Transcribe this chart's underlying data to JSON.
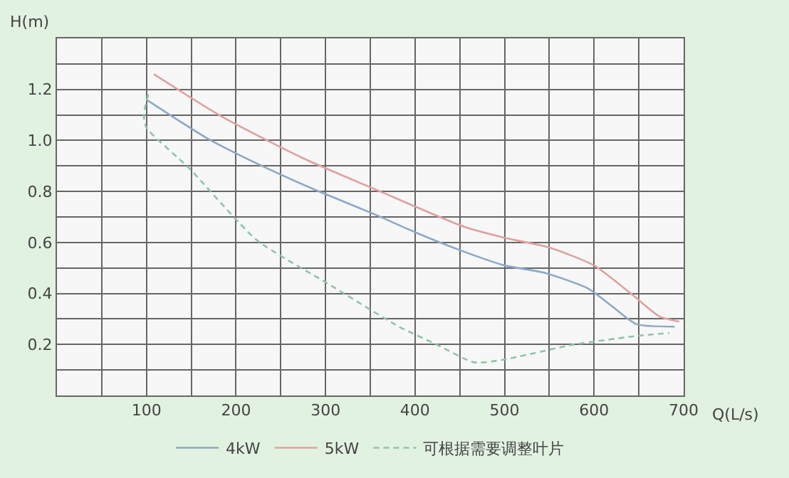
{
  "chart_data": {
    "type": "line",
    "xlabel": "Q(L/s)",
    "ylabel": "H(m)",
    "xlim": [
      0,
      700
    ],
    "ylim": [
      0,
      1.4
    ],
    "xticks": [
      {
        "value": 50,
        "label": null
      },
      100,
      {
        "value": 150,
        "label": null
      },
      200,
      {
        "value": 250,
        "label": null
      },
      300,
      {
        "value": 350,
        "label": null
      },
      400,
      {
        "value": 450,
        "label": null
      },
      500,
      {
        "value": 550,
        "label": null
      },
      600,
      {
        "value": 650,
        "label": null
      },
      700
    ],
    "yticks": [
      {
        "value": 0.1,
        "label": null
      },
      0.2,
      {
        "value": 0.3,
        "label": null
      },
      0.4,
      {
        "value": 0.5,
        "label": null
      },
      0.6,
      {
        "value": 0.7,
        "label": null
      },
      0.8,
      {
        "value": 0.9,
        "label": null
      },
      {
        "value": 1.0,
        "label": "1.0"
      },
      {
        "value": 1.1,
        "label": null
      },
      1.2,
      {
        "value": 1.3,
        "label": null
      }
    ],
    "grid": true,
    "legend": "bottom",
    "marker": "none",
    "series": [
      {
        "name": "4kW",
        "color": "#8aa9c8",
        "line_style": "solid",
        "x": [
          100,
          167,
          223,
          286,
          355,
          400,
          450,
          500,
          546,
          593,
          620,
          647,
          690
        ],
        "values": [
          1.16,
          1.01,
          0.91,
          0.81,
          0.71,
          0.64,
          0.57,
          0.51,
          0.48,
          0.42,
          0.35,
          0.28,
          0.27
        ]
      },
      {
        "name": "5kW",
        "color": "#e0a0a0",
        "line_style": "solid",
        "x": [
          108,
          186,
          275,
          361,
          456,
          498,
          550,
          600,
          641,
          673,
          695
        ],
        "values": [
          1.26,
          1.09,
          0.93,
          0.8,
          0.66,
          0.62,
          0.58,
          0.51,
          0.4,
          0.31,
          0.29
        ]
      },
      {
        "name": "可根据需要调整叶片",
        "color": "#8fc4a8",
        "line_style": "dashed",
        "x": [
          102,
          97,
          100,
          148,
          223,
          302,
          382,
          424,
          466,
          498,
          578,
          652,
          684
        ],
        "values": [
          1.18,
          1.1,
          1.05,
          0.89,
          0.61,
          0.44,
          0.27,
          0.2,
          0.13,
          0.14,
          0.2,
          0.235,
          0.245
        ]
      }
    ]
  }
}
